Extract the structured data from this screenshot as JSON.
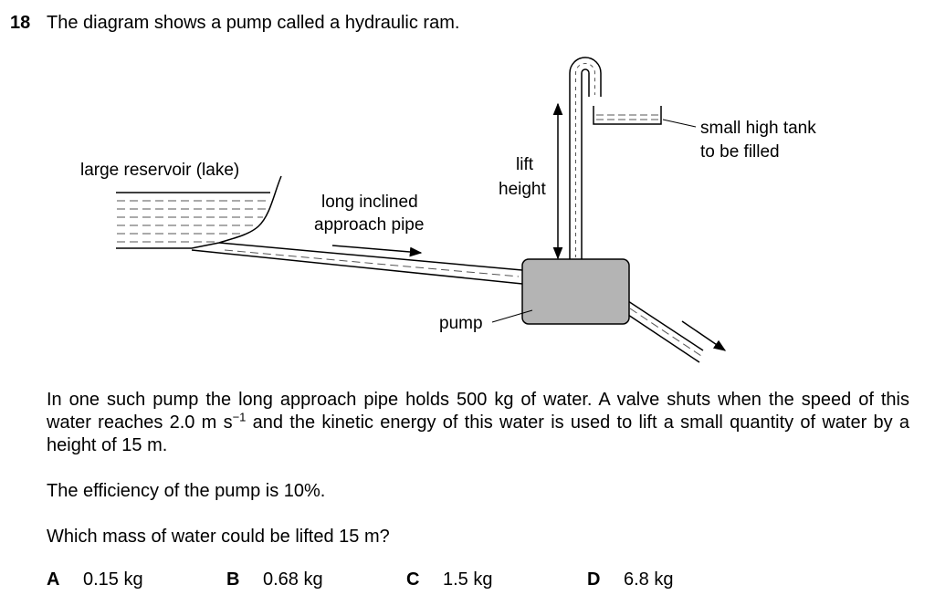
{
  "question": {
    "number": "18",
    "stem": "The diagram shows a pump called a hydraulic ram."
  },
  "diagram": {
    "labels": {
      "reservoir": "large reservoir (lake)",
      "pipe_line1": "long inclined",
      "pipe_line2": "approach pipe",
      "lift_line1": "lift",
      "lift_line2": "height",
      "tank_line1": "small high tank",
      "tank_line2": "to be filled",
      "pump": "pump"
    },
    "colors": {
      "pump_body": "#b4b4b4",
      "line": "#000000"
    }
  },
  "body": {
    "para1_a": "In one such pump the long approach pipe holds 500 kg of water. A valve shuts when the speed of this water reaches 2.0 m s",
    "para1_sup": "−1",
    "para1_b": " and the kinetic energy of this water is used to lift a small quantity of water by a height of 15 m.",
    "para2": "The efficiency of the pump is 10%.",
    "para3": "Which mass of water could be lifted 15 m?"
  },
  "options": [
    {
      "letter": "A",
      "value": "0.15 kg"
    },
    {
      "letter": "B",
      "value": "0.68 kg"
    },
    {
      "letter": "C",
      "value": "1.5 kg"
    },
    {
      "letter": "D",
      "value": "6.8 kg"
    }
  ]
}
